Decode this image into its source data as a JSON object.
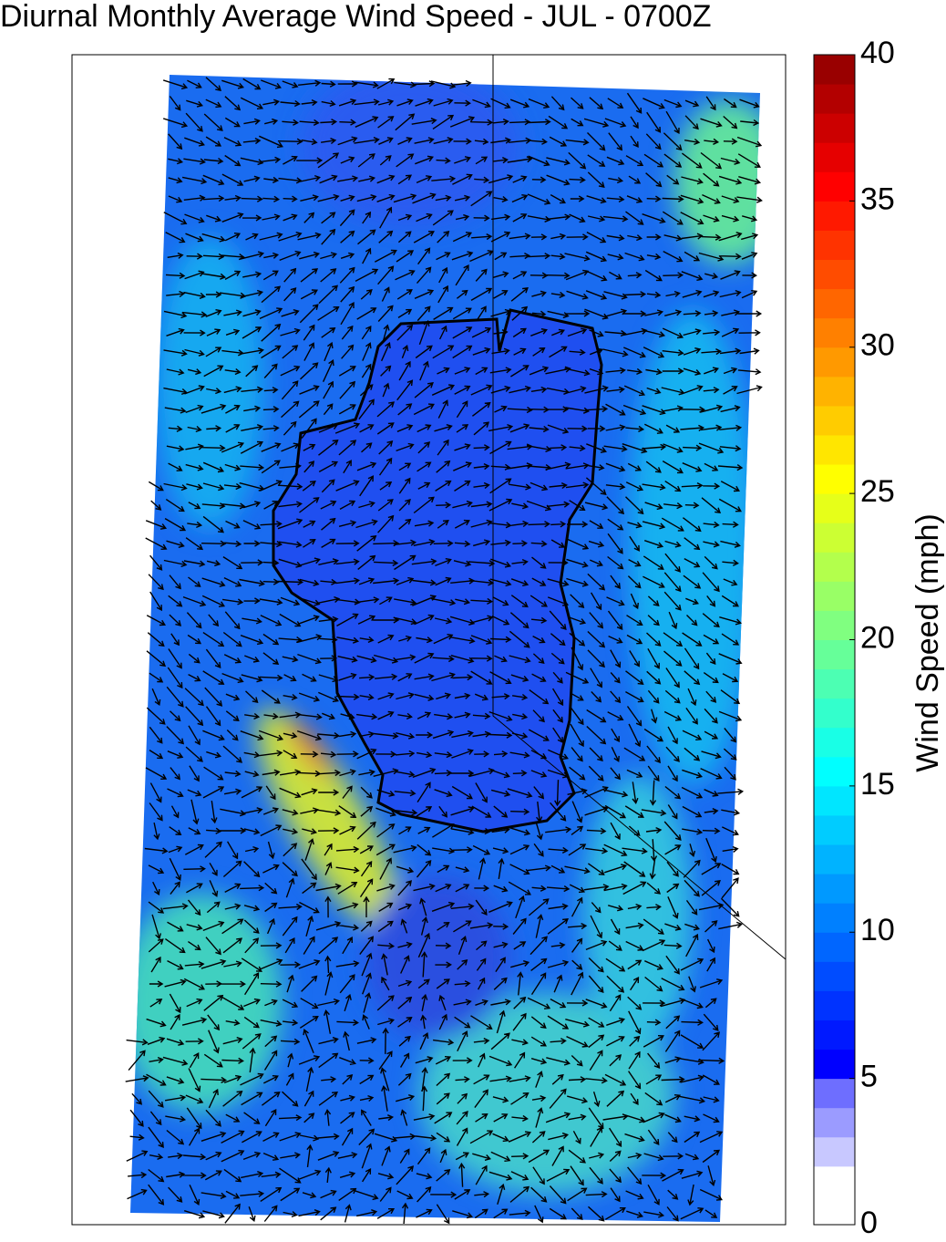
{
  "chart_data": {
    "type": "colorbar-map",
    "title": "Diurnal Monthly Average Wind Speed - JUL - 0700Z",
    "colorbar_label": "Wind Speed (mph)",
    "ylim": [
      0,
      40
    ],
    "yticks": [
      0,
      5,
      10,
      15,
      20,
      25,
      30,
      35,
      40
    ],
    "colors": [
      "#ffffff",
      "#ffffff",
      "#c8c8ff",
      "#9b9bff",
      "#6e6eff",
      "#0000ff",
      "#0019ff",
      "#0033ff",
      "#004cff",
      "#0066ff",
      "#0080ff",
      "#0099ff",
      "#00b3ff",
      "#00ccff",
      "#00e6ff",
      "#00ffff",
      "#19ffe6",
      "#33ffcc",
      "#4cffb3",
      "#66ff99",
      "#80ff80",
      "#99ff66",
      "#b3ff4c",
      "#ccff33",
      "#e6ff19",
      "#ffff00",
      "#ffe600",
      "#ffcc00",
      "#ffb300",
      "#ff9900",
      "#ff8000",
      "#ff6600",
      "#ff4c00",
      "#ff3300",
      "#ff1900",
      "#ff0000",
      "#e60000",
      "#cc0000",
      "#b30000",
      "#990000"
    ]
  }
}
